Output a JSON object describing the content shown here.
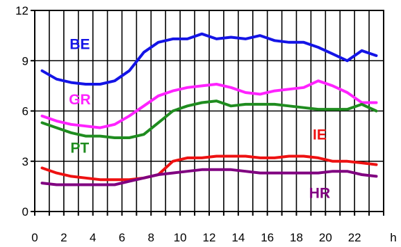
{
  "chart_data": {
    "type": "line",
    "title": "",
    "xlabel": "",
    "ylabel": "",
    "x_unit": "h",
    "xlim": [
      0,
      24
    ],
    "ylim": [
      0,
      12
    ],
    "x_ticks": [
      0,
      2,
      4,
      6,
      8,
      10,
      12,
      14,
      16,
      18,
      20,
      22
    ],
    "y_ticks": [
      0,
      3,
      6,
      9,
      12
    ],
    "grid": true,
    "legend": "none",
    "x": [
      0.5,
      1.5,
      2.5,
      3.5,
      4.5,
      5.5,
      6.5,
      7.5,
      8.5,
      9.5,
      10.5,
      11.5,
      12.5,
      13.5,
      14.5,
      15.5,
      16.5,
      17.5,
      18.5,
      19.5,
      20.5,
      21.5,
      22.5,
      23.5
    ],
    "series": [
      {
        "name": "BE",
        "color": "#1414e6",
        "values": [
          8.4,
          7.9,
          7.7,
          7.6,
          7.6,
          7.8,
          8.4,
          9.5,
          10.1,
          10.3,
          10.3,
          10.6,
          10.3,
          10.4,
          10.3,
          10.5,
          10.2,
          10.1,
          10.1,
          9.8,
          9.4,
          9.0,
          9.6,
          9.3
        ]
      },
      {
        "name": "GR",
        "color": "#ff22ff",
        "values": [
          5.7,
          5.4,
          5.2,
          5.1,
          5.0,
          5.2,
          5.7,
          6.3,
          6.9,
          7.2,
          7.4,
          7.5,
          7.6,
          7.4,
          7.1,
          7.0,
          7.2,
          7.3,
          7.4,
          7.8,
          7.5,
          7.1,
          6.5,
          6.5
        ]
      },
      {
        "name": "PT",
        "color": "#1f8c1f",
        "values": [
          5.3,
          5.0,
          4.7,
          4.5,
          4.5,
          4.4,
          4.4,
          4.6,
          5.3,
          6.0,
          6.3,
          6.5,
          6.6,
          6.3,
          6.4,
          6.4,
          6.4,
          6.3,
          6.2,
          6.1,
          6.1,
          6.1,
          6.4,
          6.0
        ]
      },
      {
        "name": "IE",
        "color": "#ee1111",
        "values": [
          2.6,
          2.3,
          2.1,
          2.0,
          1.9,
          1.9,
          1.9,
          2.0,
          2.2,
          3.0,
          3.2,
          3.2,
          3.3,
          3.3,
          3.3,
          3.2,
          3.2,
          3.3,
          3.3,
          3.2,
          3.0,
          3.0,
          2.9,
          2.8
        ]
      },
      {
        "name": "HR",
        "color": "#800080",
        "values": [
          1.7,
          1.6,
          1.6,
          1.6,
          1.6,
          1.6,
          1.8,
          2.0,
          2.2,
          2.3,
          2.4,
          2.5,
          2.5,
          2.5,
          2.4,
          2.3,
          2.3,
          2.3,
          2.3,
          2.3,
          2.4,
          2.4,
          2.2,
          2.1
        ]
      }
    ]
  }
}
